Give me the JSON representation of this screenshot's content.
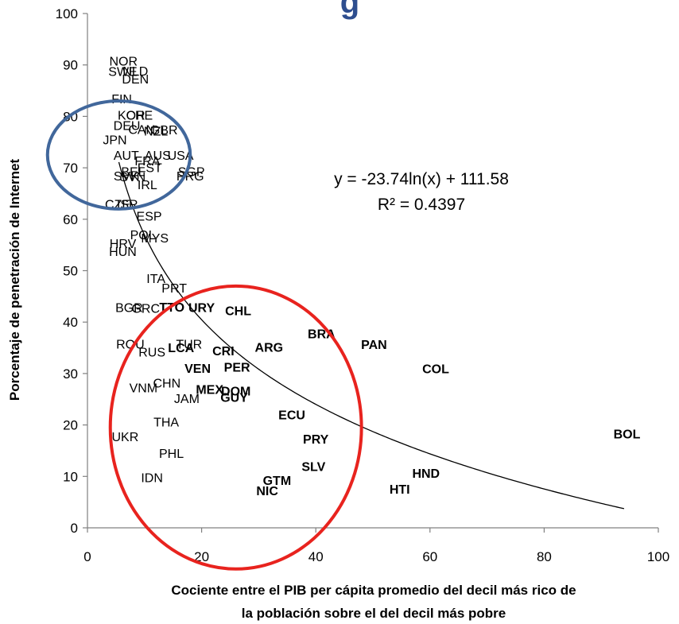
{
  "chart_data": {
    "type": "scatter",
    "title_fragment": "g",
    "xlabel_line1": "Cociente entre el PIB per cápita promedio  del decil más rico  de",
    "xlabel_line2": "la población sobre el del decil más pobre",
    "ylabel": "Porcentaje de penetración de Internet",
    "xlim": [
      0,
      100
    ],
    "ylim": [
      0,
      100
    ],
    "x_ticks": [
      0,
      20,
      40,
      60,
      80,
      100
    ],
    "y_ticks": [
      0,
      10,
      20,
      30,
      40,
      50,
      60,
      70,
      80,
      90,
      100
    ],
    "trendline": {
      "equation": "y = -23.74ln(x) + 111.58",
      "r2": "R² = 0.4397",
      "a": -23.74,
      "b": 111.58,
      "x_start": 5.5,
      "x_end": 94,
      "color": "#000000"
    },
    "circles": [
      {
        "cx": 5.5,
        "cy": 72.5,
        "rx": 12.5,
        "ry": 10.5,
        "color": "#41679b"
      },
      {
        "cx": 26,
        "cy": 19.5,
        "rx": 22,
        "ry": 27.5,
        "color": "#e8231e"
      }
    ],
    "points": [
      {
        "label": "NOR",
        "x": 6.3,
        "y": 90.8,
        "bold": false
      },
      {
        "label": "SWE",
        "x": 6.2,
        "y": 88.8,
        "bold": false
      },
      {
        "label": "NLD",
        "x": 8.4,
        "y": 88.9,
        "bold": false
      },
      {
        "label": "DEN",
        "x": 8.4,
        "y": 87.3,
        "bold": false
      },
      {
        "label": "FIN",
        "x": 6.0,
        "y": 83.5,
        "bold": false
      },
      {
        "label": "KOR",
        "x": 7.7,
        "y": 80.3,
        "bold": false
      },
      {
        "label": "CHE",
        "x": 9.1,
        "y": 80.3,
        "bold": false
      },
      {
        "label": "DEU",
        "x": 6.9,
        "y": 78.3,
        "bold": false
      },
      {
        "label": "CAN",
        "x": 9.5,
        "y": 77.5,
        "bold": false
      },
      {
        "label": "NZL",
        "x": 12.0,
        "y": 77.2,
        "bold": false
      },
      {
        "label": "GBR",
        "x": 13.4,
        "y": 77.4,
        "bold": false
      },
      {
        "label": "JPN",
        "x": 4.8,
        "y": 75.5,
        "bold": false
      },
      {
        "label": "AUT",
        "x": 6.8,
        "y": 72.5,
        "bold": false
      },
      {
        "label": "FRA",
        "x": 10.5,
        "y": 71.4,
        "bold": false
      },
      {
        "label": "AUS",
        "x": 12.3,
        "y": 72.5,
        "bold": false
      },
      {
        "label": "USA",
        "x": 16.3,
        "y": 72.5,
        "bold": false
      },
      {
        "label": "BEL",
        "x": 8.0,
        "y": 69.3,
        "bold": false
      },
      {
        "label": "EST",
        "x": 10.9,
        "y": 70.1,
        "bold": false
      },
      {
        "label": "SGP",
        "x": 18.2,
        "y": 69.3,
        "bold": false
      },
      {
        "label": "SVK",
        "x": 6.8,
        "y": 68.5,
        "bold": false
      },
      {
        "label": "SVN",
        "x": 7.9,
        "y": 68.3,
        "bold": false
      },
      {
        "label": "PRG",
        "x": 18.0,
        "y": 68.5,
        "bold": false
      },
      {
        "label": "IRL",
        "x": 10.5,
        "y": 66.8,
        "bold": false
      },
      {
        "label": "CZE",
        "x": 5.3,
        "y": 63.0,
        "bold": false
      },
      {
        "label": "ISR",
        "x": 7.0,
        "y": 63.0,
        "bold": false
      },
      {
        "label": "ESP",
        "x": 10.8,
        "y": 60.7,
        "bold": false
      },
      {
        "label": "POL",
        "x": 9.7,
        "y": 57.0,
        "bold": false
      },
      {
        "label": "MYS",
        "x": 11.8,
        "y": 56.4,
        "bold": false
      },
      {
        "label": "HRV",
        "x": 6.2,
        "y": 55.3,
        "bold": false
      },
      {
        "label": "HUN",
        "x": 6.2,
        "y": 53.8,
        "bold": false
      },
      {
        "label": "ITA",
        "x": 12.0,
        "y": 48.5,
        "bold": false
      },
      {
        "label": "PRT",
        "x": 15.2,
        "y": 46.7,
        "bold": false
      },
      {
        "label": "BGR",
        "x": 7.3,
        "y": 42.9,
        "bold": false
      },
      {
        "label": "GRC",
        "x": 10.2,
        "y": 42.7,
        "bold": false
      },
      {
        "label": "TTO",
        "x": 14.8,
        "y": 43.0,
        "bold": true
      },
      {
        "label": "URY",
        "x": 20.0,
        "y": 42.9,
        "bold": true
      },
      {
        "label": "CHL",
        "x": 26.4,
        "y": 42.3,
        "bold": true
      },
      {
        "label": "BRA",
        "x": 41.0,
        "y": 37.8,
        "bold": true
      },
      {
        "label": "PAN",
        "x": 50.2,
        "y": 35.7,
        "bold": true
      },
      {
        "label": "ROU",
        "x": 7.5,
        "y": 35.8,
        "bold": false
      },
      {
        "label": "TUR",
        "x": 17.8,
        "y": 35.8,
        "bold": false
      },
      {
        "label": "RUS",
        "x": 11.3,
        "y": 34.2,
        "bold": false
      },
      {
        "label": "LCA",
        "x": 16.4,
        "y": 35.1,
        "bold": true
      },
      {
        "label": "CRI",
        "x": 23.8,
        "y": 34.5,
        "bold": true
      },
      {
        "label": "ARG",
        "x": 31.8,
        "y": 35.2,
        "bold": true
      },
      {
        "label": "COL",
        "x": 61.0,
        "y": 31.0,
        "bold": true
      },
      {
        "label": "VEN",
        "x": 19.3,
        "y": 31.1,
        "bold": true
      },
      {
        "label": "PER",
        "x": 26.2,
        "y": 31.3,
        "bold": true
      },
      {
        "label": "CHN",
        "x": 13.9,
        "y": 28.2,
        "bold": false
      },
      {
        "label": "VNM",
        "x": 9.8,
        "y": 27.3,
        "bold": false
      },
      {
        "label": "MEX",
        "x": 21.4,
        "y": 27.0,
        "bold": true
      },
      {
        "label": "DOM",
        "x": 26.0,
        "y": 26.7,
        "bold": true
      },
      {
        "label": "GUY",
        "x": 25.7,
        "y": 25.4,
        "bold": true
      },
      {
        "label": "JAM",
        "x": 17.4,
        "y": 25.2,
        "bold": false
      },
      {
        "label": "ECU",
        "x": 35.8,
        "y": 22.0,
        "bold": true
      },
      {
        "label": "THA",
        "x": 13.8,
        "y": 20.6,
        "bold": false
      },
      {
        "label": "UKR",
        "x": 6.6,
        "y": 17.8,
        "bold": false
      },
      {
        "label": "PRY",
        "x": 40.0,
        "y": 17.3,
        "bold": true
      },
      {
        "label": "BOL",
        "x": 94.5,
        "y": 18.3,
        "bold": true
      },
      {
        "label": "PHL",
        "x": 14.7,
        "y": 14.5,
        "bold": false
      },
      {
        "label": "SLV",
        "x": 39.6,
        "y": 12.0,
        "bold": true
      },
      {
        "label": "HND",
        "x": 59.3,
        "y": 10.7,
        "bold": true
      },
      {
        "label": "IDN",
        "x": 11.3,
        "y": 9.8,
        "bold": false
      },
      {
        "label": "GTM",
        "x": 33.2,
        "y": 9.3,
        "bold": true
      },
      {
        "label": "NIC",
        "x": 31.5,
        "y": 7.3,
        "bold": true
      },
      {
        "label": "HTI",
        "x": 54.7,
        "y": 7.6,
        "bold": true
      }
    ]
  }
}
